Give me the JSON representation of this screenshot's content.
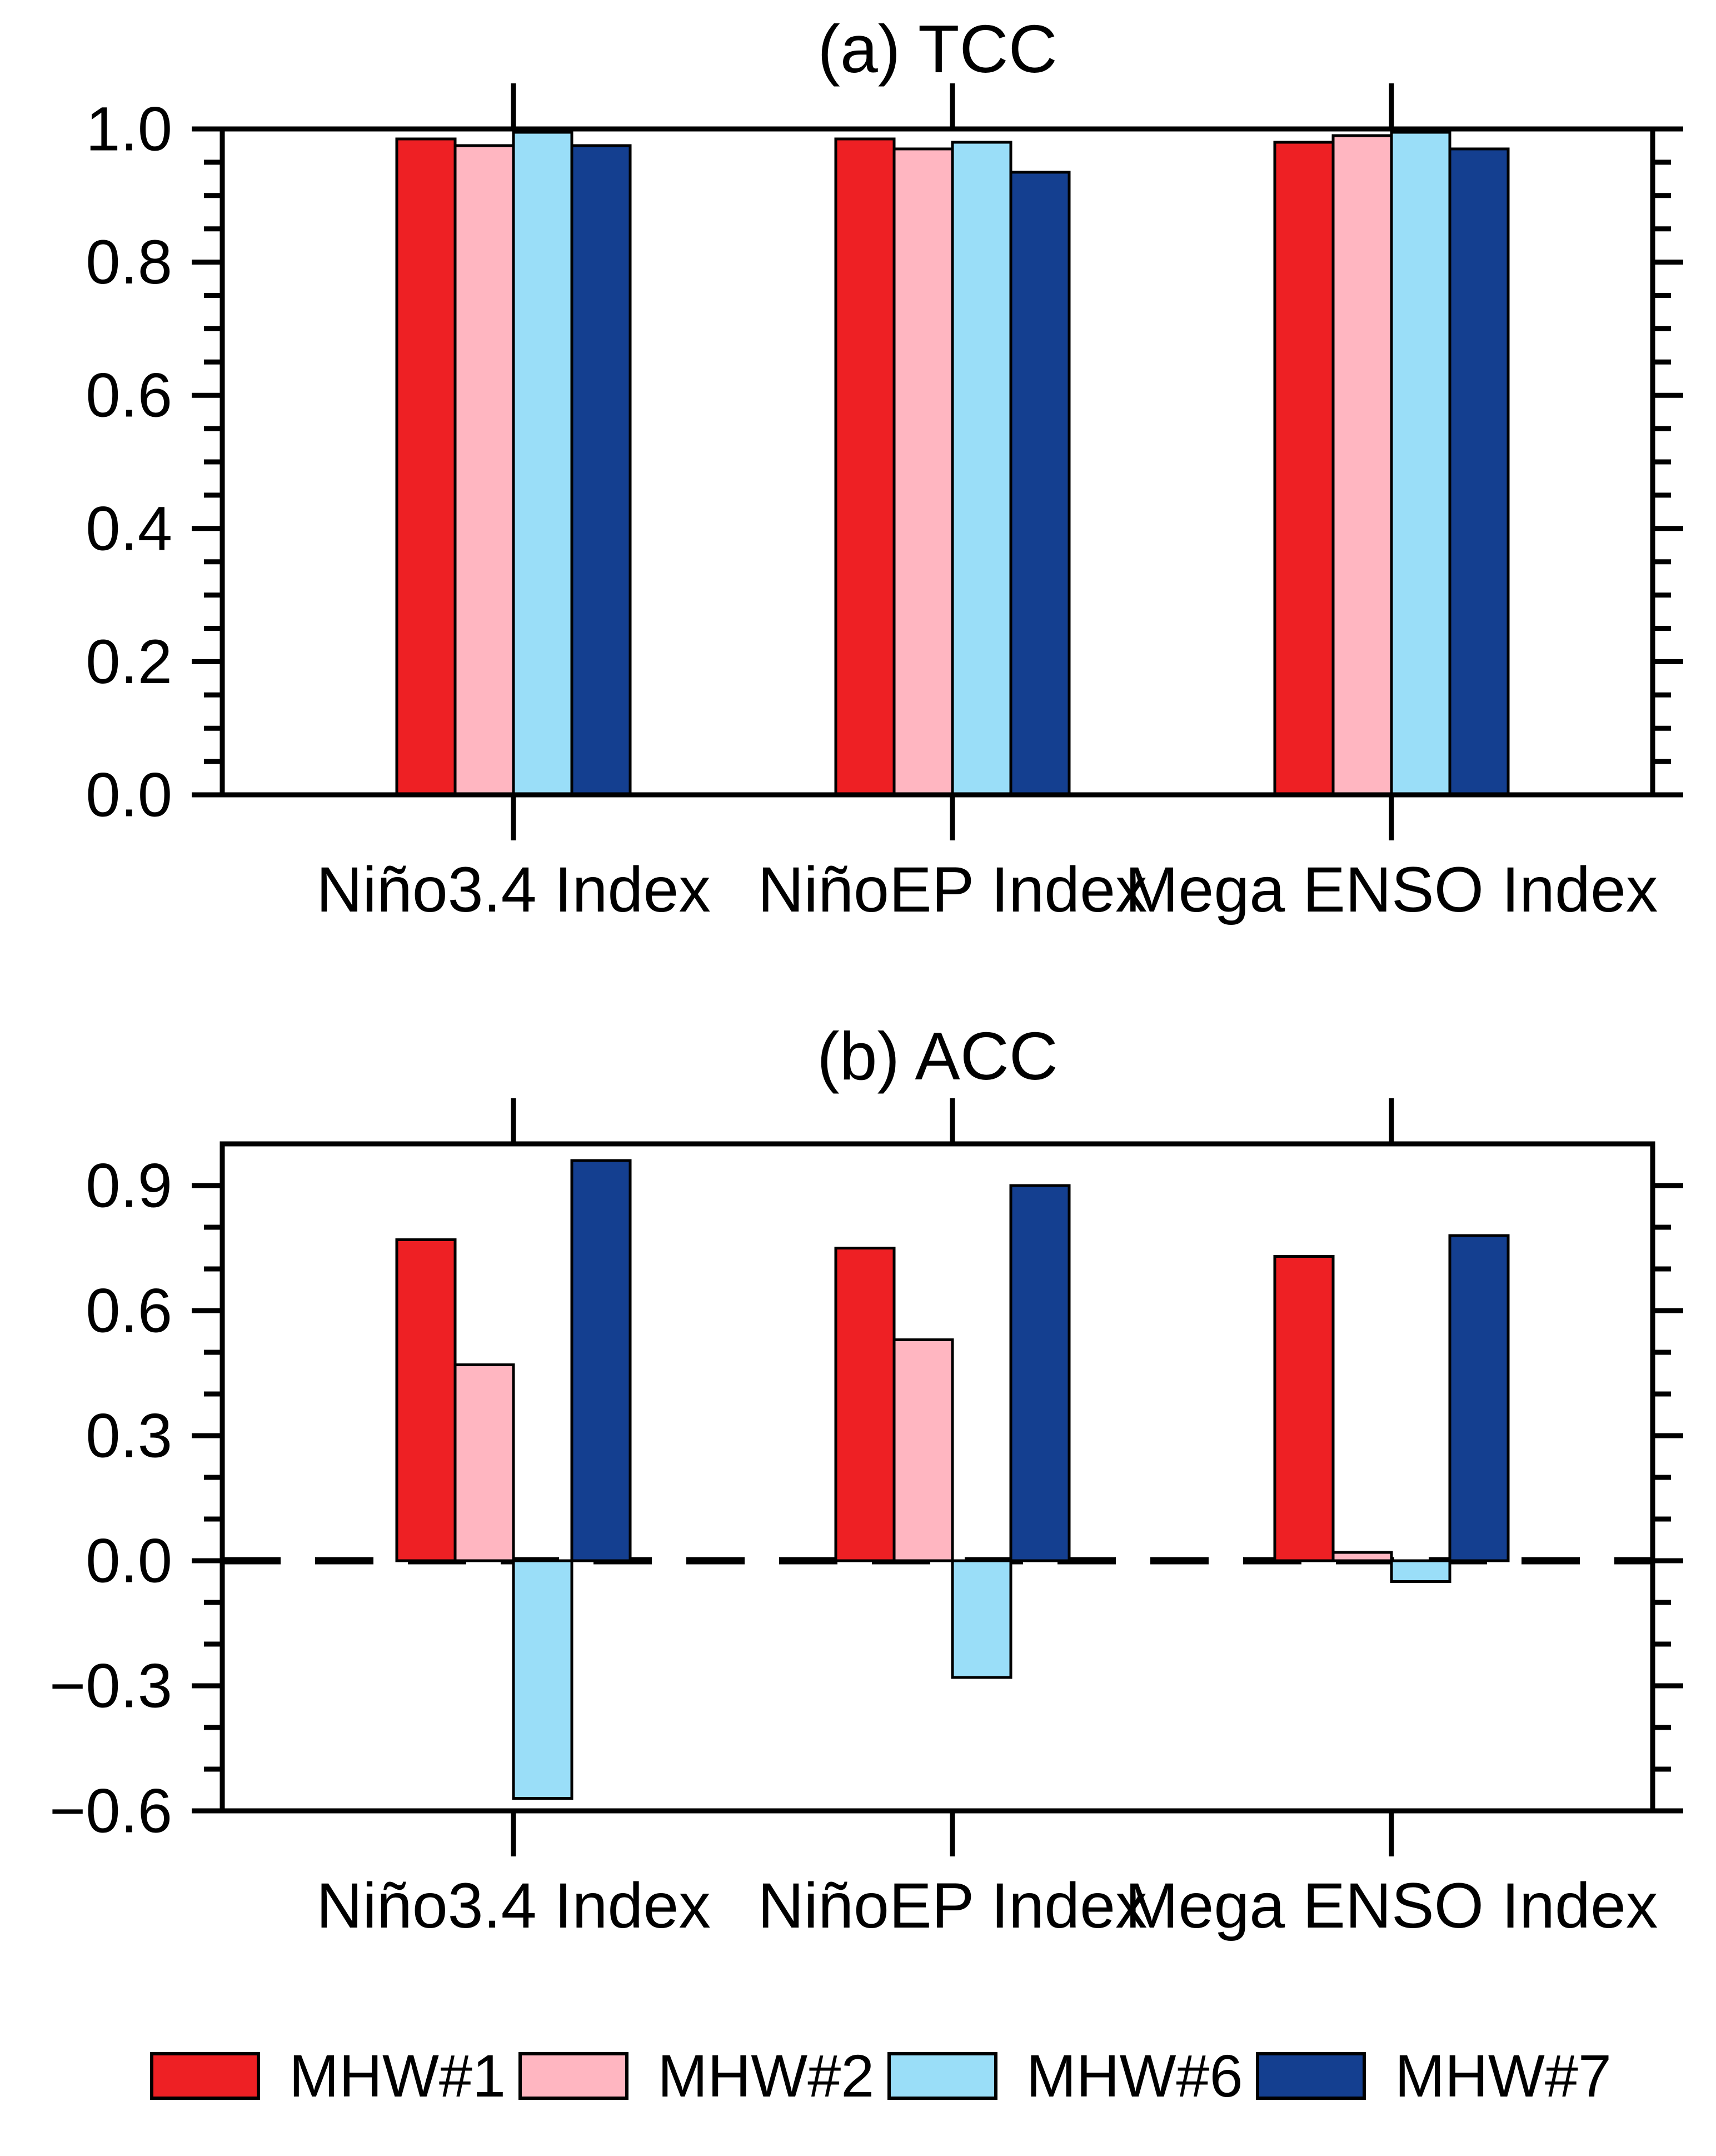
{
  "figure_title": "",
  "legend": {
    "items": [
      {
        "label": "MHW#1",
        "color": "#ee2024"
      },
      {
        "label": "MHW#2",
        "color": "#ffb6c1"
      },
      {
        "label": "MHW#6",
        "color": "#9adef8"
      },
      {
        "label": "MHW#7",
        "color": "#143f90"
      }
    ]
  },
  "colors": {
    "axis": "#000000",
    "background": "#ffffff",
    "mhw1_red": "#ee2024",
    "mhw2_pink": "#ffb6c1",
    "mhw6_lightblue": "#9adef8",
    "mhw7_navy": "#143f90"
  },
  "chart_data": [
    {
      "type": "bar",
      "title": "(a) TCC",
      "xlabel": "",
      "ylabel": "",
      "categories": [
        "Niño3.4 Index",
        "NiñoEP Index",
        "Mega ENSO Index"
      ],
      "series": [
        {
          "name": "MHW#1",
          "color": "#ee2024",
          "values": [
            0.985,
            0.985,
            0.98
          ]
        },
        {
          "name": "MHW#2",
          "color": "#ffb6c1",
          "values": [
            0.975,
            0.97,
            0.99
          ]
        },
        {
          "name": "MHW#6",
          "color": "#9adef8",
          "values": [
            0.995,
            0.98,
            0.995
          ]
        },
        {
          "name": "MHW#7",
          "color": "#143f90",
          "values": [
            0.975,
            0.935,
            0.97
          ]
        }
      ],
      "ylim": [
        0.0,
        1.0
      ],
      "ytick_values": [
        0.0,
        0.2,
        0.4,
        0.6,
        0.8,
        1.0
      ],
      "ytick_labels": [
        "0.0",
        "0.2",
        "0.4",
        "0.6",
        "0.8",
        "1.0"
      ],
      "ytick_minor_step": 0.05,
      "zero_line_dashed": false,
      "grid": false,
      "legend_position": "bottom"
    },
    {
      "type": "bar",
      "title": "(b) ACC",
      "xlabel": "",
      "ylabel": "",
      "categories": [
        "Niño3.4 Index",
        "NiñoEP Index",
        "Mega ENSO Index"
      ],
      "series": [
        {
          "name": "MHW#1",
          "color": "#ee2024",
          "values": [
            0.77,
            0.75,
            0.73
          ]
        },
        {
          "name": "MHW#2",
          "color": "#ffb6c1",
          "values": [
            0.47,
            0.53,
            0.02
          ]
        },
        {
          "name": "MHW#6",
          "color": "#9adef8",
          "values": [
            -0.57,
            -0.28,
            -0.05
          ]
        },
        {
          "name": "MHW#7",
          "color": "#143f90",
          "values": [
            0.96,
            0.9,
            0.78
          ]
        }
      ],
      "ylim": [
        -0.6,
        1.0
      ],
      "ytick_values": [
        0.9,
        0.6,
        0.3,
        0.0,
        -0.3,
        -0.6
      ],
      "ytick_labels": [
        "0.9",
        "0.6",
        "0.3",
        "0.0",
        "−0.3",
        "−0.6"
      ],
      "ytick_minor_step": 0.1,
      "zero_line_dashed": true,
      "grid": false,
      "legend_position": "bottom"
    }
  ]
}
